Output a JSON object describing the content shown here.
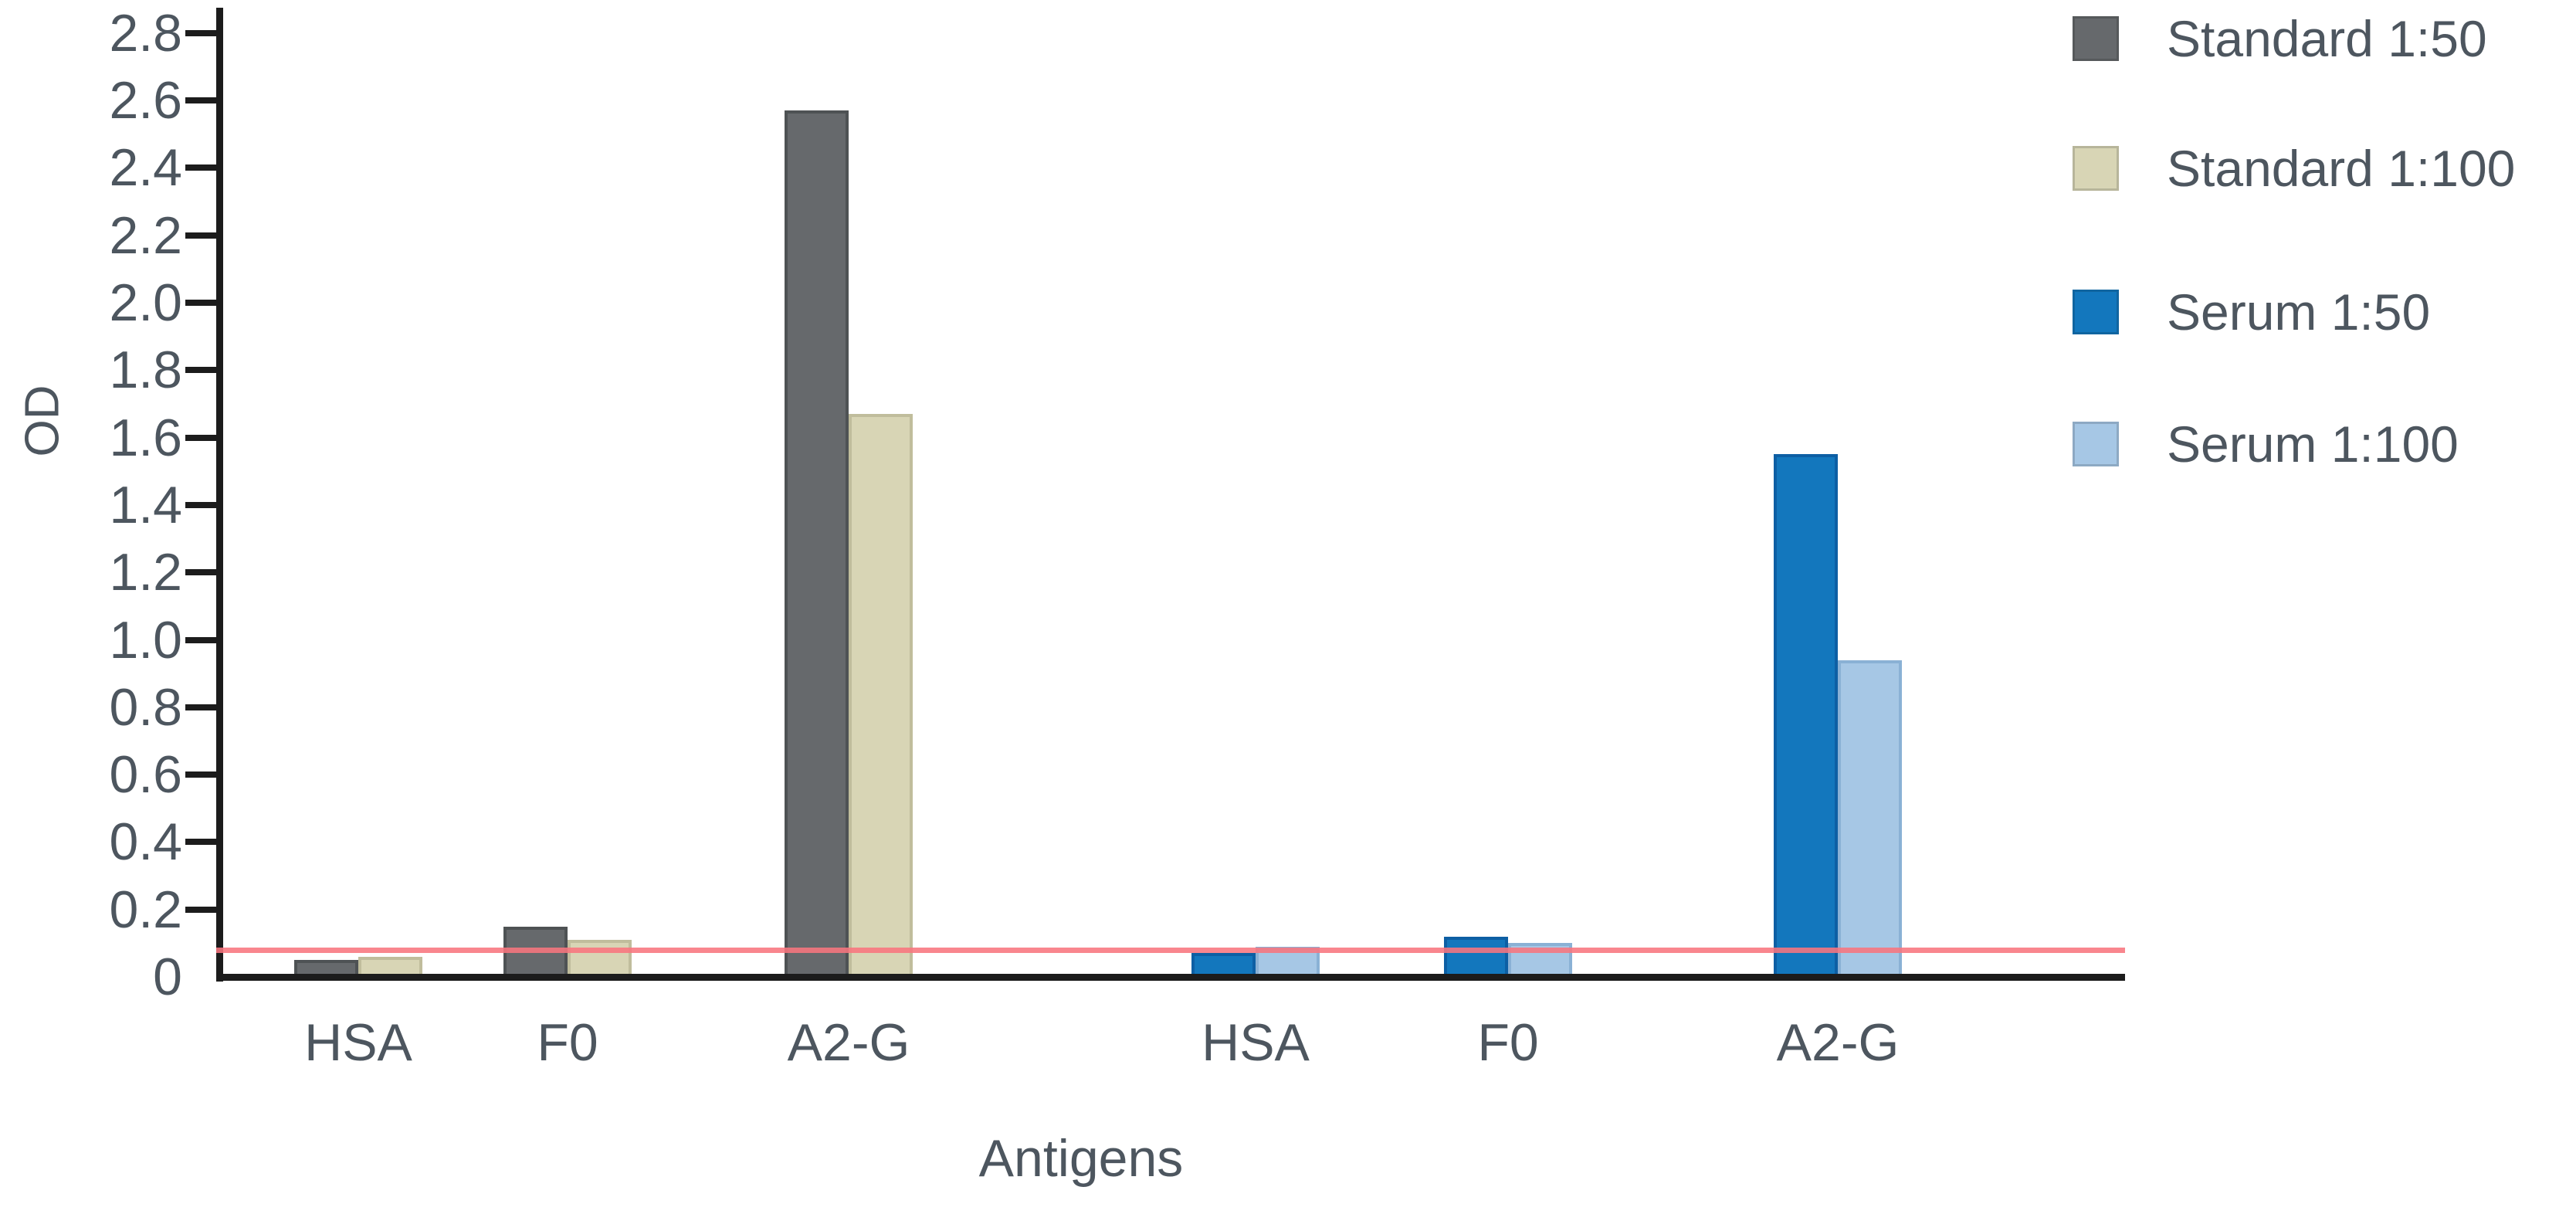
{
  "chart_data": {
    "type": "bar",
    "title": "",
    "xlabel": "Antigens",
    "ylabel": "OD",
    "ylim": [
      0,
      2.8
    ],
    "ytick_step": 0.2,
    "ytick_labels": [
      "0",
      "0.2",
      "0.4",
      "0.6",
      "0.8",
      "1.0",
      "1.2",
      "1.4",
      "1.6",
      "1.8",
      "2.0",
      "2.2",
      "2.4",
      "2.6",
      "2.8"
    ],
    "categories": [
      "HSA",
      "F0",
      "A2-G"
    ],
    "groups": [
      "Standard",
      "Serum"
    ],
    "series": [
      {
        "name": "Standard 1:50",
        "group": "Standard",
        "color": "#66696c",
        "border": "#4e5254",
        "values": [
          0.05,
          0.15,
          2.57
        ]
      },
      {
        "name": "Standard 1:100",
        "group": "Standard",
        "color": "#d8d5b5",
        "border": "#c0bd9c",
        "values": [
          0.06,
          0.11,
          1.67
        ]
      },
      {
        "name": "Serum 1:50",
        "group": "Serum",
        "color": "#1377bd",
        "border": "#0d5fa4",
        "values": [
          0.07,
          0.12,
          1.55
        ]
      },
      {
        "name": "Serum 1:100",
        "group": "Serum",
        "color": "#a6c7e5",
        "border": "#8ab1d5",
        "values": [
          0.09,
          0.1,
          0.94
        ]
      }
    ],
    "cutoff_line": {
      "value": 0.08,
      "color": "#f8757e"
    },
    "legend_position": "top-right",
    "grid": false
  },
  "legend": {
    "items": [
      {
        "label": "Standard 1:50",
        "color": "#66696c"
      },
      {
        "label": "Standard 1:100",
        "color": "#d8d5b5"
      },
      {
        "label": "Serum 1:50",
        "color": "#1377bd"
      },
      {
        "label": "Serum 1:100",
        "color": "#a6c7e5"
      }
    ]
  },
  "colors": {
    "axis": "#1c1c1c",
    "text": "#4d565f",
    "cutoff": "#f8757e",
    "background": "#ffffff"
  }
}
